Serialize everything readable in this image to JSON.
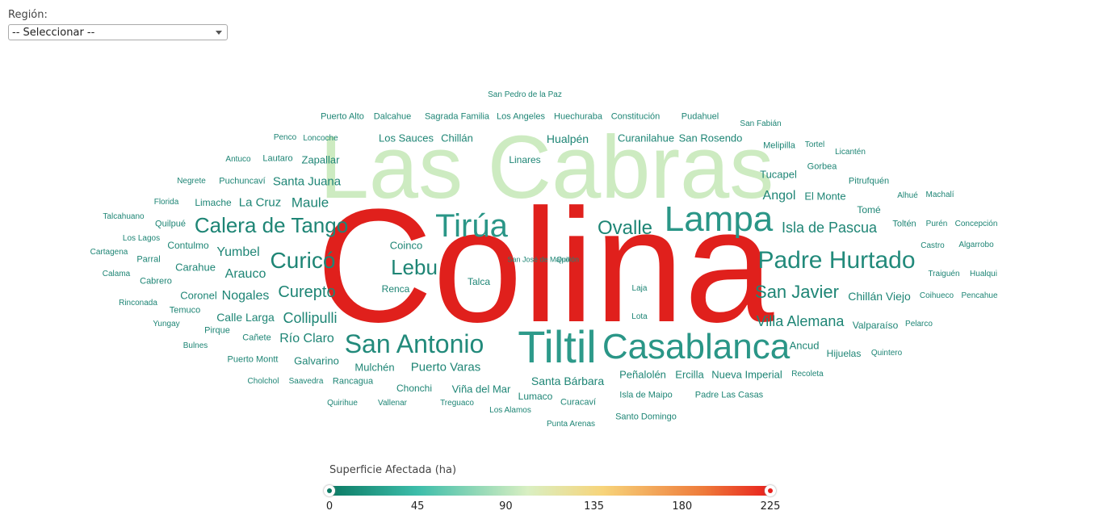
{
  "filter": {
    "label": "Región:",
    "selected": "-- Seleccionar --"
  },
  "legend": {
    "title": "Superficie Afectada (ha)",
    "ticks": [
      "0",
      "45",
      "90",
      "135",
      "180",
      "225"
    ],
    "colors": [
      "#0b7a64",
      "#3dbdaa",
      "#d9efc2",
      "#f7d47a",
      "#ee7a3a",
      "#e8201c"
    ]
  },
  "cloud": {
    "words": [
      {
        "text": "Colina",
        "size": 200,
        "color": "#e0201c"
      },
      {
        "text": "Las Cabras",
        "size": 110,
        "color": "#cdebc1"
      },
      {
        "text": "Tiltil",
        "size": 56,
        "color": "#2d9a8a"
      },
      {
        "text": "Casablanca",
        "size": 44,
        "color": "#2a9687"
      },
      {
        "text": "Lampa",
        "size": 44,
        "color": "#2a9687"
      },
      {
        "text": "Tirúa",
        "size": 40,
        "color": "#2a9687"
      },
      {
        "text": "San Antonio",
        "size": 32,
        "color": "#228a7b"
      },
      {
        "text": "Padre Hurtado",
        "size": 30,
        "color": "#228a7b"
      },
      {
        "text": "Calera de Tango",
        "size": 26,
        "color": "#1e8575"
      },
      {
        "text": "Curicó",
        "size": 28,
        "color": "#1e8575"
      },
      {
        "text": "Lebu",
        "size": 26,
        "color": "#1e8575"
      },
      {
        "text": "Ovalle",
        "size": 24,
        "color": "#1e8575"
      },
      {
        "text": "San Javier",
        "size": 22,
        "color": "#1e8575"
      },
      {
        "text": "Curepto",
        "size": 20,
        "color": "#1e8575"
      },
      {
        "text": "Isla de Pascua",
        "size": 18,
        "color": "#1e8575"
      },
      {
        "text": "Collipulli",
        "size": 18,
        "color": "#1e8575"
      },
      {
        "text": "Villa Alemana",
        "size": 18,
        "color": "#1e8575"
      },
      {
        "text": "Maule",
        "size": 17,
        "color": "#1e8575"
      },
      {
        "text": "Arauco",
        "size": 16,
        "color": "#1e8575"
      },
      {
        "text": "Nogales",
        "size": 16,
        "color": "#1e8575"
      },
      {
        "text": "Yumbel",
        "size": 16,
        "color": "#1e8575"
      },
      {
        "text": "Río Claro",
        "size": 16,
        "color": "#1e8575"
      },
      {
        "text": "Puerto Varas",
        "size": 15,
        "color": "#1e8575"
      },
      {
        "text": "Angol",
        "size": 16,
        "color": "#1e8575"
      },
      {
        "text": "Santa Juana",
        "size": 15,
        "color": "#1e8575"
      },
      {
        "text": "La Cruz",
        "size": 15,
        "color": "#1e8575"
      },
      {
        "text": "Chillán Viejo",
        "size": 14,
        "color": "#1e8575"
      },
      {
        "text": "Calle Larga",
        "size": 14,
        "color": "#1e8575"
      },
      {
        "text": "Santa Bárbara",
        "size": 14,
        "color": "#1e8575"
      },
      {
        "text": "Hualpén",
        "size": 14,
        "color": "#1e8575"
      },
      {
        "text": "Curanilahue",
        "size": 13,
        "color": "#1e8575"
      },
      {
        "text": "San Rosendo",
        "size": 13,
        "color": "#1e8575"
      },
      {
        "text": "El Monte",
        "size": 13,
        "color": "#1e8575"
      },
      {
        "text": "Tucapel",
        "size": 13,
        "color": "#1e8575"
      },
      {
        "text": "Peñalolén",
        "size": 13,
        "color": "#1e8575"
      },
      {
        "text": "Ercilla",
        "size": 13,
        "color": "#1e8575"
      },
      {
        "text": "Nueva Imperial",
        "size": 13,
        "color": "#1e8575"
      },
      {
        "text": "Viña del Mar",
        "size": 13,
        "color": "#1e8575"
      },
      {
        "text": "Carahue",
        "size": 13,
        "color": "#1e8575"
      },
      {
        "text": "Contulmo",
        "size": 12,
        "color": "#1e8575"
      },
      {
        "text": "Coronel",
        "size": 13,
        "color": "#1e8575"
      },
      {
        "text": "Galvarino",
        "size": 13,
        "color": "#1e8575"
      },
      {
        "text": "Ancud",
        "size": 13,
        "color": "#1e8575"
      },
      {
        "text": "Hijuelas",
        "size": 12,
        "color": "#1e8575"
      },
      {
        "text": "Valparaíso",
        "size": 12,
        "color": "#1e8575"
      },
      {
        "text": "Chillán",
        "size": 13,
        "color": "#1e8575"
      },
      {
        "text": "Los Sauces",
        "size": 13,
        "color": "#1e8575"
      },
      {
        "text": "Zapallar",
        "size": 13,
        "color": "#1e8575"
      },
      {
        "text": "Coinco",
        "size": 13,
        "color": "#1e8575"
      },
      {
        "text": "Mulchén",
        "size": 13,
        "color": "#1e8575"
      },
      {
        "text": "Lumaco",
        "size": 12,
        "color": "#1e8575"
      },
      {
        "text": "Chonchi",
        "size": 12,
        "color": "#1e8575"
      },
      {
        "text": "Tomé",
        "size": 12,
        "color": "#1e8575"
      },
      {
        "text": "Gorbea",
        "size": 11,
        "color": "#1e8575"
      },
      {
        "text": "Pitrufquén",
        "size": 11,
        "color": "#1e8575"
      },
      {
        "text": "Linares",
        "size": 12,
        "color": "#1e8575"
      },
      {
        "text": "Renca",
        "size": 12,
        "color": "#1e8575"
      },
      {
        "text": "Talca",
        "size": 12,
        "color": "#1e8575"
      },
      {
        "text": "Limache",
        "size": 12,
        "color": "#1e8575"
      },
      {
        "text": "Lautaro",
        "size": 11,
        "color": "#1e8575"
      },
      {
        "text": "Puchuncaví",
        "size": 11,
        "color": "#1e8575"
      },
      {
        "text": "Cañete",
        "size": 11,
        "color": "#1e8575"
      },
      {
        "text": "Pirque",
        "size": 11,
        "color": "#1e8575"
      },
      {
        "text": "Quilpué",
        "size": 11,
        "color": "#1e8575"
      },
      {
        "text": "Parral",
        "size": 11,
        "color": "#1e8575"
      },
      {
        "text": "Cabrero",
        "size": 11,
        "color": "#1e8575"
      },
      {
        "text": "Temuco",
        "size": 11,
        "color": "#1e8575"
      },
      {
        "text": "Puerto Montt",
        "size": 11,
        "color": "#1e8575"
      },
      {
        "text": "Rancagua",
        "size": 11,
        "color": "#1e8575"
      },
      {
        "text": "Isla de Maipo",
        "size": 11,
        "color": "#1e8575"
      },
      {
        "text": "Padre Las Casas",
        "size": 11,
        "color": "#1e8575"
      },
      {
        "text": "Curacaví",
        "size": 11,
        "color": "#1e8575"
      },
      {
        "text": "Santo Domingo",
        "size": 11,
        "color": "#1e8575"
      },
      {
        "text": "Puerto Alto",
        "size": 11,
        "color": "#1e8575"
      },
      {
        "text": "Dalcahue",
        "size": 11,
        "color": "#1e8575"
      },
      {
        "text": "Sagrada Familia",
        "size": 11,
        "color": "#1e8575"
      },
      {
        "text": "Los Angeles",
        "size": 11,
        "color": "#1e8575"
      },
      {
        "text": "Huechuraba",
        "size": 11,
        "color": "#1e8575"
      },
      {
        "text": "Constitución",
        "size": 11,
        "color": "#1e8575"
      },
      {
        "text": "Pudahuel",
        "size": 11,
        "color": "#1e8575"
      },
      {
        "text": "San Pedro de la Paz",
        "size": 10,
        "color": "#1e8575"
      },
      {
        "text": "San Fabián",
        "size": 10,
        "color": "#1e8575"
      },
      {
        "text": "Melipilla",
        "size": 11,
        "color": "#1e8575"
      },
      {
        "text": "Tortel",
        "size": 10,
        "color": "#1e8575"
      },
      {
        "text": "Licantén",
        "size": 10,
        "color": "#1e8575"
      },
      {
        "text": "Penco",
        "size": 10,
        "color": "#1e8575"
      },
      {
        "text": "Loncoche",
        "size": 10,
        "color": "#1e8575"
      },
      {
        "text": "Antuco",
        "size": 10,
        "color": "#1e8575"
      },
      {
        "text": "Negrete",
        "size": 10,
        "color": "#1e8575"
      },
      {
        "text": "Florida",
        "size": 10,
        "color": "#1e8575"
      },
      {
        "text": "Talcahuano",
        "size": 10,
        "color": "#1e8575"
      },
      {
        "text": "Los Lagos",
        "size": 10,
        "color": "#1e8575"
      },
      {
        "text": "Cartagena",
        "size": 10,
        "color": "#1e8575"
      },
      {
        "text": "Calama",
        "size": 10,
        "color": "#1e8575"
      },
      {
        "text": "Rinconada",
        "size": 10,
        "color": "#1e8575"
      },
      {
        "text": "Yungay",
        "size": 10,
        "color": "#1e8575"
      },
      {
        "text": "Bulnes",
        "size": 10,
        "color": "#1e8575"
      },
      {
        "text": "Cholchol",
        "size": 10,
        "color": "#1e8575"
      },
      {
        "text": "Saavedra",
        "size": 10,
        "color": "#1e8575"
      },
      {
        "text": "Quirihue",
        "size": 10,
        "color": "#1e8575"
      },
      {
        "text": "Vallenar",
        "size": 10,
        "color": "#1e8575"
      },
      {
        "text": "Treguaco",
        "size": 10,
        "color": "#1e8575"
      },
      {
        "text": "Los Alamos",
        "size": 10,
        "color": "#1e8575"
      },
      {
        "text": "Punta Arenas",
        "size": 10,
        "color": "#1e8575"
      },
      {
        "text": "Alhué",
        "size": 10,
        "color": "#1e8575"
      },
      {
        "text": "Machalí",
        "size": 10,
        "color": "#1e8575"
      },
      {
        "text": "Toltén",
        "size": 11,
        "color": "#1e8575"
      },
      {
        "text": "Purén",
        "size": 10,
        "color": "#1e8575"
      },
      {
        "text": "Concepción",
        "size": 10,
        "color": "#1e8575"
      },
      {
        "text": "Castro",
        "size": 10,
        "color": "#1e8575"
      },
      {
        "text": "Algarrobo",
        "size": 10,
        "color": "#1e8575"
      },
      {
        "text": "Traiguén",
        "size": 10,
        "color": "#1e8575"
      },
      {
        "text": "Hualqui",
        "size": 10,
        "color": "#1e8575"
      },
      {
        "text": "Coihueco",
        "size": 10,
        "color": "#1e8575"
      },
      {
        "text": "Pencahue",
        "size": 10,
        "color": "#1e8575"
      },
      {
        "text": "Pelarco",
        "size": 10,
        "color": "#1e8575"
      },
      {
        "text": "Quintero",
        "size": 10,
        "color": "#1e8575"
      },
      {
        "text": "Recoleta",
        "size": 10,
        "color": "#1e8575"
      },
      {
        "text": "Laja",
        "size": 10,
        "color": "#1e8575"
      },
      {
        "text": "Lota",
        "size": 10,
        "color": "#1e8575"
      },
      {
        "text": "San José de Maipo",
        "size": 9,
        "color": "#1e8575"
      },
      {
        "text": "Quillón",
        "size": 9,
        "color": "#1e8575"
      }
    ]
  }
}
